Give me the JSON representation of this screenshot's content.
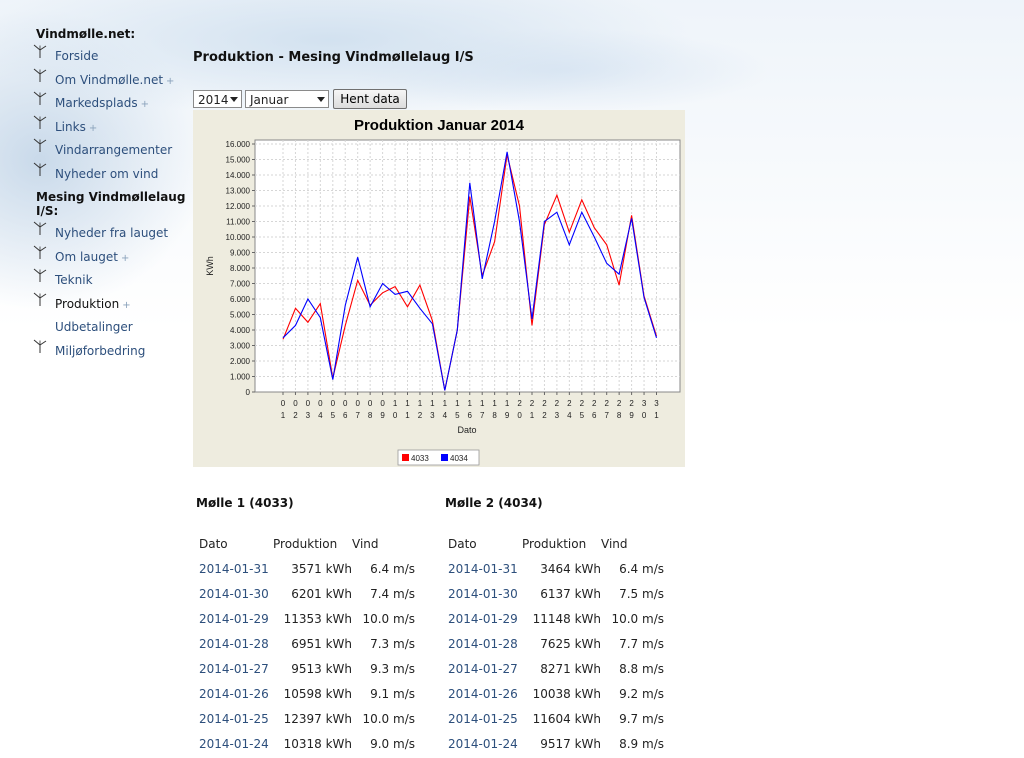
{
  "sidebar": {
    "heading1": "Vindmølle.net:",
    "items1": [
      {
        "label": "Forside",
        "plus": false
      },
      {
        "label": "Om Vindmølle.net",
        "plus": true
      },
      {
        "label": "Markedsplads",
        "plus": true
      },
      {
        "label": "Links",
        "plus": true
      },
      {
        "label": "Vindarrangementer",
        "plus": false
      },
      {
        "label": "Nyheder om vind",
        "plus": false
      }
    ],
    "heading2": "Mesing Vindmøllelaug I/S:",
    "items2": [
      {
        "label": "Nyheder fra lauget",
        "plus": false
      },
      {
        "label": "Om lauget",
        "plus": true
      },
      {
        "label": "Teknik",
        "plus": false
      },
      {
        "label": "Produktion",
        "plus": true
      },
      {
        "label": "Udbetalinger",
        "plus": false
      },
      {
        "label": "Miljøforbedring",
        "plus": false
      }
    ],
    "plus_symbol": "+",
    "icon": "windmill-icon"
  },
  "page_title": "Produktion - Mesing Vindmøllelaug I/S",
  "form": {
    "year_value": "2014",
    "month_value": "Januar",
    "fetch_label": "Hent data"
  },
  "chart_data": {
    "type": "line",
    "title": "Produktion Januar 2014",
    "xlabel": "Dato",
    "ylabel": "KWh",
    "ylim": [
      0,
      16000
    ],
    "yticks": [
      "0",
      "1.000",
      "2.000",
      "3.000",
      "4.000",
      "5.000",
      "6.000",
      "7.000",
      "8.000",
      "9.000",
      "10.000",
      "11.000",
      "12.000",
      "13.000",
      "14.000",
      "15.000",
      "16.000"
    ],
    "categories": [
      "01",
      "02",
      "03",
      "04",
      "05",
      "06",
      "07",
      "08",
      "09",
      "10",
      "11",
      "12",
      "13",
      "14",
      "15",
      "16",
      "17",
      "18",
      "19",
      "20",
      "21",
      "22",
      "23",
      "24",
      "25",
      "26",
      "27",
      "28",
      "29",
      "30",
      "31"
    ],
    "series": [
      {
        "name": "4033",
        "color": "#ff0000",
        "values": [
          3400,
          5400,
          4500,
          5700,
          900,
          4300,
          7200,
          5600,
          6400,
          6800,
          5500,
          6900,
          4600,
          100,
          4000,
          12600,
          7500,
          9700,
          15300,
          12000,
          4300,
          10800,
          12700,
          10300,
          12400,
          10600,
          9500,
          6900,
          11400,
          6200,
          3600
        ]
      },
      {
        "name": "4034",
        "color": "#0000ff",
        "values": [
          3500,
          4300,
          6000,
          4800,
          800,
          5600,
          8700,
          5500,
          7000,
          6300,
          6500,
          5400,
          4400,
          100,
          4000,
          13500,
          7300,
          11000,
          15500,
          11000,
          4700,
          11000,
          11600,
          9500,
          11600,
          10000,
          8300,
          7600,
          11200,
          6100,
          3500
        ]
      }
    ],
    "legend_position": "bottom",
    "grid": true
  },
  "mill1": {
    "title": "Mølle 1 (4033)",
    "headers": [
      "Dato",
      "Produktion",
      "Vind"
    ],
    "rows": [
      [
        "2014-01-31",
        "3571 kWh",
        "6.4 m/s"
      ],
      [
        "2014-01-30",
        "6201 kWh",
        "7.4 m/s"
      ],
      [
        "2014-01-29",
        "11353 kWh",
        "10.0 m/s"
      ],
      [
        "2014-01-28",
        "6951 kWh",
        "7.3 m/s"
      ],
      [
        "2014-01-27",
        "9513 kWh",
        "9.3 m/s"
      ],
      [
        "2014-01-26",
        "10598 kWh",
        "9.1 m/s"
      ],
      [
        "2014-01-25",
        "12397 kWh",
        "10.0 m/s"
      ],
      [
        "2014-01-24",
        "10318 kWh",
        "9.0 m/s"
      ]
    ]
  },
  "mill2": {
    "title": "Mølle 2 (4034)",
    "headers": [
      "Dato",
      "Produktion",
      "Vind"
    ],
    "rows": [
      [
        "2014-01-31",
        "3464 kWh",
        "6.4 m/s"
      ],
      [
        "2014-01-30",
        "6137 kWh",
        "7.5 m/s"
      ],
      [
        "2014-01-29",
        "11148 kWh",
        "10.0 m/s"
      ],
      [
        "2014-01-28",
        "7625 kWh",
        "7.7 m/s"
      ],
      [
        "2014-01-27",
        "8271 kWh",
        "8.8 m/s"
      ],
      [
        "2014-01-26",
        "10038 kWh",
        "9.2 m/s"
      ],
      [
        "2014-01-25",
        "11604 kWh",
        "9.7 m/s"
      ],
      [
        "2014-01-24",
        "9517 kWh",
        "8.9 m/s"
      ]
    ]
  }
}
